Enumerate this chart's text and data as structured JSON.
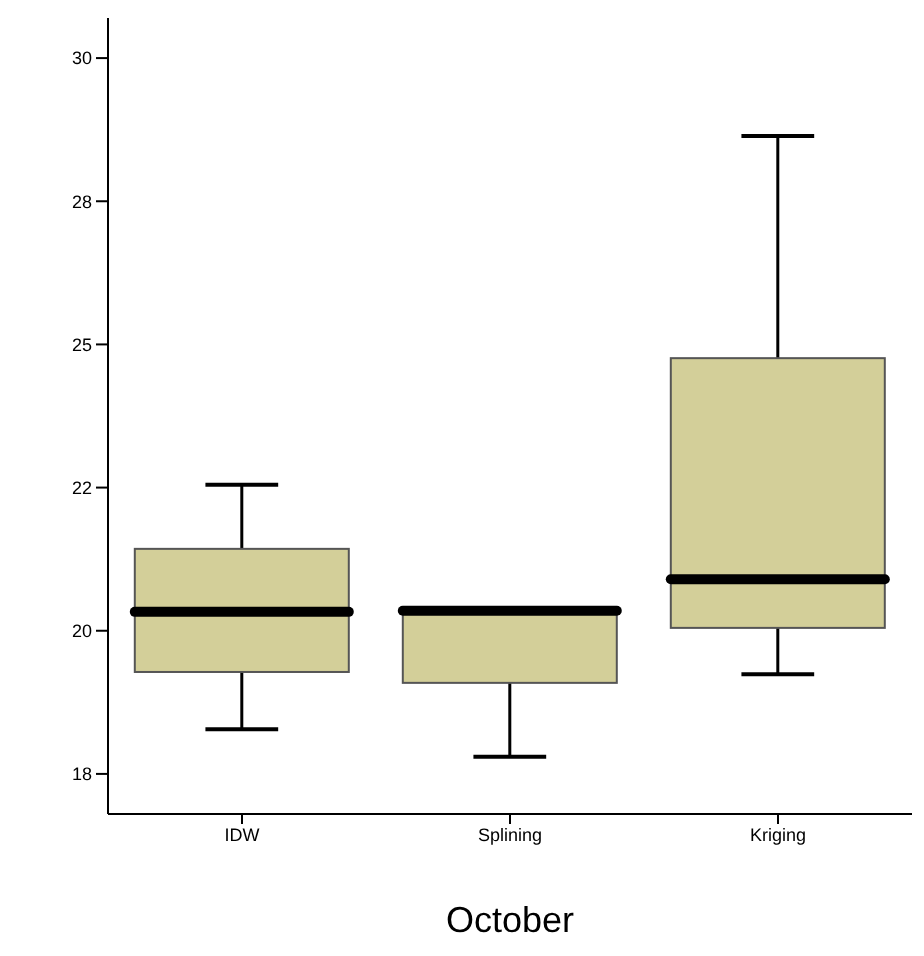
{
  "chart_data": {
    "type": "box",
    "xlabel": "October",
    "categories": [
      "IDW",
      "Splining",
      "Kriging"
    ],
    "color": "#d3cf99",
    "boxes": [
      {
        "low": 18.28,
        "q1": 19.28,
        "median": 20.33,
        "q3": 21.43,
        "high": 22.55
      },
      {
        "low": 17.8,
        "q1": 19.09,
        "median": 20.35,
        "q3": 20.35,
        "high": 20.35
      },
      {
        "low": 19.24,
        "q1": 20.05,
        "median": 20.9,
        "q3": 24.76,
        "high": 28.64
      }
    ],
    "ylim": [
      16.8,
      30.7
    ],
    "yticks": [
      {
        "value": 17.5,
        "label": "18"
      },
      20,
      {
        "value": 22.5,
        "label": "22"
      },
      25,
      {
        "value": 27.5,
        "label": "28"
      },
      30
    ]
  }
}
